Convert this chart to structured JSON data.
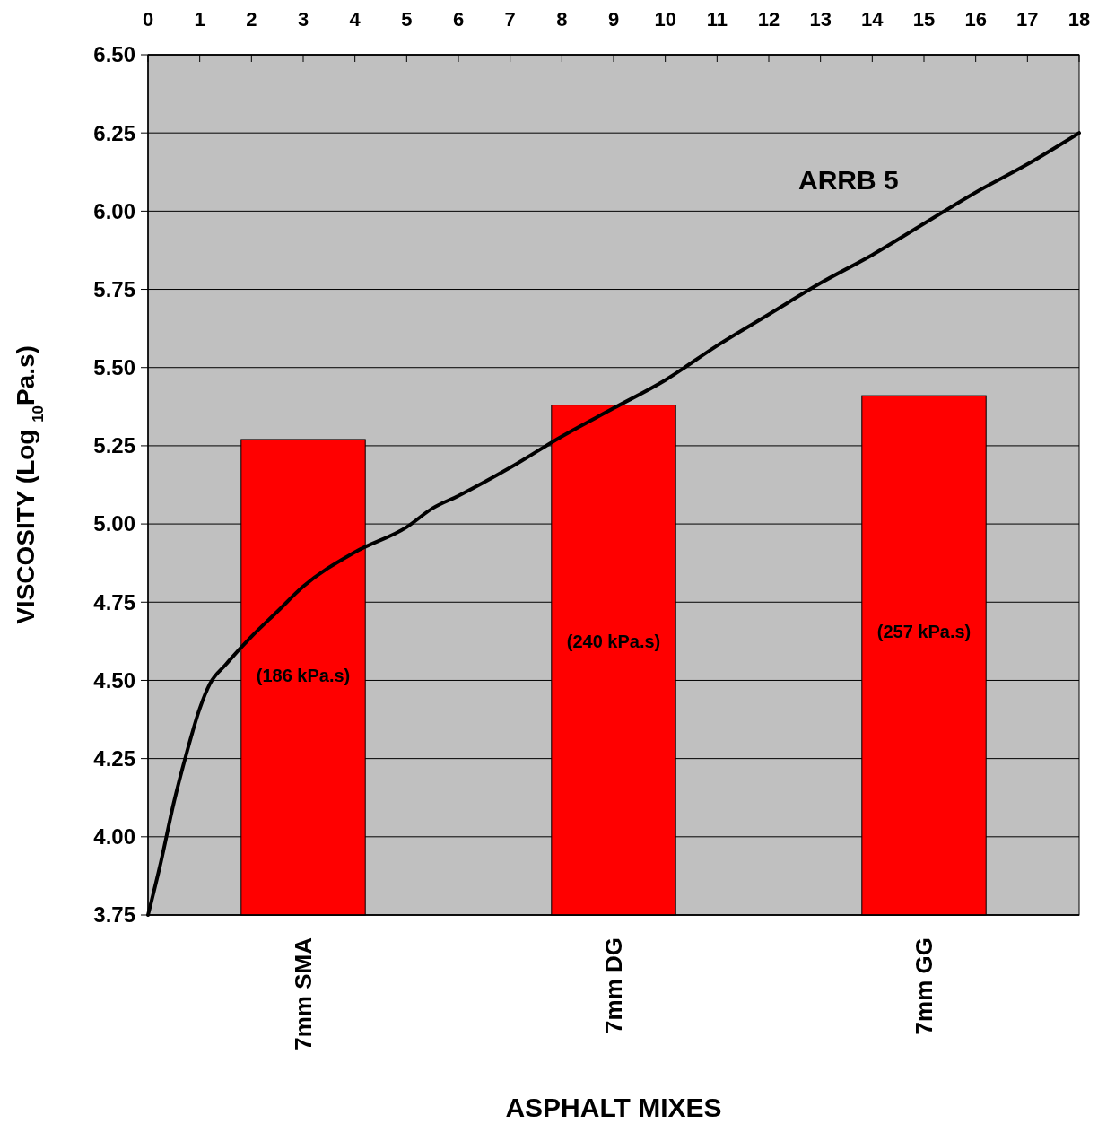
{
  "chart_data": {
    "type": "bar",
    "xlabel": "ASPHALT MIXES",
    "ylabel": "VISCOSITY (Log $_{10}$Pa.s)",
    "categories": [
      "7mm SMA",
      "7mm DG",
      "7mm GG"
    ],
    "series": [
      {
        "color": "#ff0000",
        "values": [
          5.27,
          5.38,
          5.41
        ]
      },
      {
        "type": "line",
        "axis": "x2",
        "color": "#000000",
        "x": [
          0,
          0.25,
          0.5,
          0.75,
          1,
          1.2,
          1.5,
          2,
          2.5,
          3,
          4,
          5,
          5.5,
          6,
          7,
          8,
          9,
          10,
          11,
          12,
          13,
          14,
          15,
          16,
          17,
          18
        ],
        "values": [
          3.75,
          3.92,
          4.11,
          4.27,
          4.41,
          4.49,
          4.55,
          4.64,
          4.72,
          4.8,
          4.91,
          4.99,
          5.05,
          5.09,
          5.18,
          5.28,
          5.37,
          5.46,
          5.57,
          5.67,
          5.77,
          5.86,
          5.96,
          6.06,
          6.15,
          6.25
        ]
      }
    ],
    "ylim": [
      3.75,
      6.5
    ],
    "yticks": [
      {
        "value": 3.75,
        "label": "3.75"
      },
      {
        "value": 4,
        "label": "4.00"
      },
      {
        "value": 4.25,
        "label": "4.25"
      },
      {
        "value": 4.5,
        "label": "4.50"
      },
      {
        "value": 4.75,
        "label": "4.75"
      },
      {
        "value": 5,
        "label": "5.00"
      },
      {
        "value": 5.25,
        "label": "5.25"
      },
      {
        "value": 5.5,
        "label": "5.50"
      },
      {
        "value": 5.75,
        "label": "5.75"
      },
      {
        "value": 6,
        "label": "6.00"
      },
      {
        "value": 6.25,
        "label": "6.25"
      },
      {
        "value": 6.5,
        "label": "6.50"
      }
    ],
    "x2lim": [
      0,
      18
    ],
    "x2ticks": [
      0,
      1,
      2,
      3,
      4,
      5,
      6,
      7,
      8,
      9,
      10,
      11,
      12,
      13,
      14,
      15,
      16,
      17,
      18
    ],
    "grid": "y",
    "marker": "none",
    "line_style": "solid",
    "annotations": [
      "ARRB 5",
      "(186 kPa.s)",
      "(240 kPa.s)",
      "(257 kPa.s)"
    ]
  }
}
